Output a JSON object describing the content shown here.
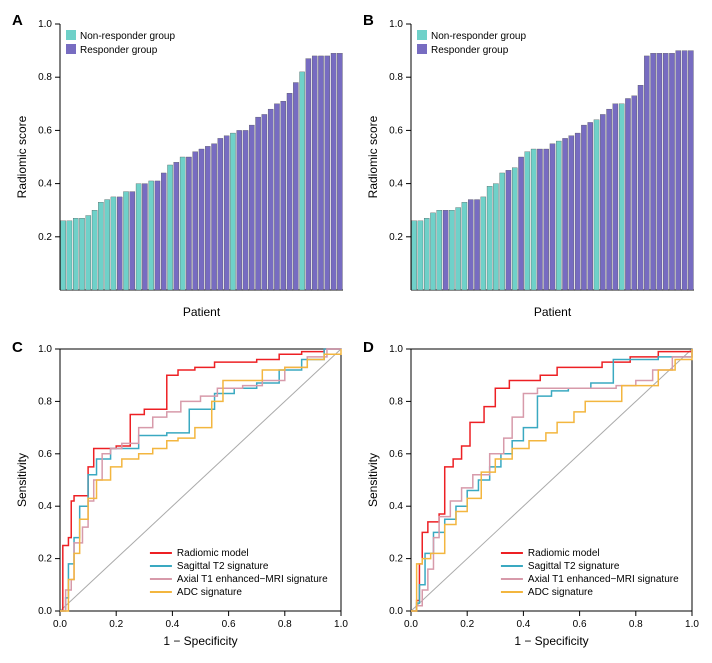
{
  "panels": {
    "A": {
      "label": "A",
      "type": "bar"
    },
    "B": {
      "label": "B",
      "type": "bar"
    },
    "C": {
      "label": "C",
      "type": "roc"
    },
    "D": {
      "label": "D",
      "type": "roc"
    }
  },
  "bar_common": {
    "ylabel": "Radiomic score",
    "xlabel": "Patient",
    "ylim": [
      0,
      1.0
    ],
    "yticks": [
      0.2,
      0.4,
      0.6,
      0.8,
      1.0
    ],
    "axis_fontsize": 12,
    "tick_fontsize": 10,
    "legend_items": [
      {
        "label": "Non-responder group",
        "color": "#6fd1c9"
      },
      {
        "label": "Responder group",
        "color": "#776cc1"
      }
    ],
    "colors": {
      "nonresponder": "#6fd1c9",
      "responder": "#776cc1"
    },
    "background_color": "#ffffff"
  },
  "barA_values": [
    {
      "v": 0.26,
      "g": "n"
    },
    {
      "v": 0.26,
      "g": "n"
    },
    {
      "v": 0.27,
      "g": "n"
    },
    {
      "v": 0.27,
      "g": "n"
    },
    {
      "v": 0.28,
      "g": "n"
    },
    {
      "v": 0.3,
      "g": "n"
    },
    {
      "v": 0.33,
      "g": "n"
    },
    {
      "v": 0.34,
      "g": "n"
    },
    {
      "v": 0.35,
      "g": "n"
    },
    {
      "v": 0.35,
      "g": "r"
    },
    {
      "v": 0.37,
      "g": "n"
    },
    {
      "v": 0.37,
      "g": "r"
    },
    {
      "v": 0.4,
      "g": "n"
    },
    {
      "v": 0.4,
      "g": "r"
    },
    {
      "v": 0.41,
      "g": "n"
    },
    {
      "v": 0.41,
      "g": "r"
    },
    {
      "v": 0.44,
      "g": "r"
    },
    {
      "v": 0.47,
      "g": "n"
    },
    {
      "v": 0.48,
      "g": "r"
    },
    {
      "v": 0.5,
      "g": "n"
    },
    {
      "v": 0.5,
      "g": "r"
    },
    {
      "v": 0.52,
      "g": "r"
    },
    {
      "v": 0.53,
      "g": "r"
    },
    {
      "v": 0.54,
      "g": "r"
    },
    {
      "v": 0.55,
      "g": "r"
    },
    {
      "v": 0.57,
      "g": "r"
    },
    {
      "v": 0.58,
      "g": "r"
    },
    {
      "v": 0.59,
      "g": "n"
    },
    {
      "v": 0.6,
      "g": "r"
    },
    {
      "v": 0.6,
      "g": "r"
    },
    {
      "v": 0.62,
      "g": "r"
    },
    {
      "v": 0.65,
      "g": "r"
    },
    {
      "v": 0.66,
      "g": "r"
    },
    {
      "v": 0.68,
      "g": "r"
    },
    {
      "v": 0.7,
      "g": "r"
    },
    {
      "v": 0.71,
      "g": "r"
    },
    {
      "v": 0.74,
      "g": "r"
    },
    {
      "v": 0.78,
      "g": "r"
    },
    {
      "v": 0.82,
      "g": "n"
    },
    {
      "v": 0.87,
      "g": "r"
    },
    {
      "v": 0.88,
      "g": "r"
    },
    {
      "v": 0.88,
      "g": "r"
    },
    {
      "v": 0.88,
      "g": "r"
    },
    {
      "v": 0.89,
      "g": "r"
    },
    {
      "v": 0.89,
      "g": "r"
    }
  ],
  "barB_values": [
    {
      "v": 0.26,
      "g": "n"
    },
    {
      "v": 0.26,
      "g": "n"
    },
    {
      "v": 0.27,
      "g": "n"
    },
    {
      "v": 0.29,
      "g": "n"
    },
    {
      "v": 0.3,
      "g": "n"
    },
    {
      "v": 0.3,
      "g": "r"
    },
    {
      "v": 0.3,
      "g": "n"
    },
    {
      "v": 0.31,
      "g": "n"
    },
    {
      "v": 0.33,
      "g": "n"
    },
    {
      "v": 0.34,
      "g": "r"
    },
    {
      "v": 0.34,
      "g": "r"
    },
    {
      "v": 0.35,
      "g": "n"
    },
    {
      "v": 0.39,
      "g": "n"
    },
    {
      "v": 0.4,
      "g": "n"
    },
    {
      "v": 0.44,
      "g": "n"
    },
    {
      "v": 0.45,
      "g": "r"
    },
    {
      "v": 0.46,
      "g": "n"
    },
    {
      "v": 0.5,
      "g": "r"
    },
    {
      "v": 0.52,
      "g": "n"
    },
    {
      "v": 0.53,
      "g": "n"
    },
    {
      "v": 0.53,
      "g": "r"
    },
    {
      "v": 0.53,
      "g": "r"
    },
    {
      "v": 0.55,
      "g": "r"
    },
    {
      "v": 0.56,
      "g": "n"
    },
    {
      "v": 0.57,
      "g": "r"
    },
    {
      "v": 0.58,
      "g": "r"
    },
    {
      "v": 0.59,
      "g": "r"
    },
    {
      "v": 0.62,
      "g": "r"
    },
    {
      "v": 0.63,
      "g": "r"
    },
    {
      "v": 0.64,
      "g": "n"
    },
    {
      "v": 0.66,
      "g": "r"
    },
    {
      "v": 0.68,
      "g": "r"
    },
    {
      "v": 0.7,
      "g": "r"
    },
    {
      "v": 0.7,
      "g": "n"
    },
    {
      "v": 0.72,
      "g": "r"
    },
    {
      "v": 0.73,
      "g": "r"
    },
    {
      "v": 0.77,
      "g": "r"
    },
    {
      "v": 0.88,
      "g": "r"
    },
    {
      "v": 0.89,
      "g": "r"
    },
    {
      "v": 0.89,
      "g": "r"
    },
    {
      "v": 0.89,
      "g": "r"
    },
    {
      "v": 0.89,
      "g": "r"
    },
    {
      "v": 0.9,
      "g": "r"
    },
    {
      "v": 0.9,
      "g": "r"
    },
    {
      "v": 0.9,
      "g": "r"
    }
  ],
  "roc_common": {
    "ylabel": "Sensitivity",
    "xlabel": "1 − Specificity",
    "xlim": [
      0,
      1.0
    ],
    "ylim": [
      0,
      1.0
    ],
    "ticks": [
      0.0,
      0.2,
      0.4,
      0.6,
      0.8,
      1.0
    ],
    "axis_fontsize": 12,
    "tick_fontsize": 10,
    "line_width": 1.5,
    "diag_color": "#aaaaaa",
    "legend_items": [
      {
        "label": "Radiomic model",
        "color": "#ed2024"
      },
      {
        "label": "Sagittal T2 signature",
        "color": "#3aa9c1"
      },
      {
        "label": "Axial T1 enhanced−MRI signature",
        "color": "#d79aaa"
      },
      {
        "label": "ADC signature",
        "color": "#f3b63f"
      }
    ],
    "background_color": "#ffffff"
  },
  "rocC": {
    "radiomic": [
      [
        0,
        0
      ],
      [
        0.01,
        0.25
      ],
      [
        0.03,
        0.28
      ],
      [
        0.04,
        0.42
      ],
      [
        0.05,
        0.44
      ],
      [
        0.08,
        0.44
      ],
      [
        0.1,
        0.55
      ],
      [
        0.12,
        0.62
      ],
      [
        0.15,
        0.62
      ],
      [
        0.2,
        0.63
      ],
      [
        0.25,
        0.75
      ],
      [
        0.3,
        0.77
      ],
      [
        0.35,
        0.77
      ],
      [
        0.38,
        0.9
      ],
      [
        0.42,
        0.92
      ],
      [
        0.48,
        0.93
      ],
      [
        0.55,
        0.95
      ],
      [
        0.62,
        0.95
      ],
      [
        0.7,
        0.96
      ],
      [
        0.78,
        0.98
      ],
      [
        0.86,
        0.99
      ],
      [
        0.94,
        1.0
      ],
      [
        1.0,
        1.0
      ]
    ],
    "sagittal": [
      [
        0,
        0
      ],
      [
        0.02,
        0.05
      ],
      [
        0.03,
        0.18
      ],
      [
        0.05,
        0.28
      ],
      [
        0.07,
        0.4
      ],
      [
        0.1,
        0.52
      ],
      [
        0.13,
        0.58
      ],
      [
        0.18,
        0.62
      ],
      [
        0.23,
        0.62
      ],
      [
        0.28,
        0.67
      ],
      [
        0.33,
        0.67
      ],
      [
        0.38,
        0.68
      ],
      [
        0.42,
        0.68
      ],
      [
        0.46,
        0.77
      ],
      [
        0.5,
        0.77
      ],
      [
        0.55,
        0.83
      ],
      [
        0.62,
        0.85
      ],
      [
        0.7,
        0.87
      ],
      [
        0.78,
        0.92
      ],
      [
        0.86,
        0.96
      ],
      [
        0.94,
        1.0
      ],
      [
        1.0,
        1.0
      ]
    ],
    "axial": [
      [
        0,
        0
      ],
      [
        0.02,
        0.08
      ],
      [
        0.04,
        0.12
      ],
      [
        0.05,
        0.26
      ],
      [
        0.08,
        0.32
      ],
      [
        0.1,
        0.42
      ],
      [
        0.12,
        0.5
      ],
      [
        0.15,
        0.6
      ],
      [
        0.18,
        0.62
      ],
      [
        0.22,
        0.64
      ],
      [
        0.28,
        0.7
      ],
      [
        0.33,
        0.74
      ],
      [
        0.38,
        0.76
      ],
      [
        0.43,
        0.8
      ],
      [
        0.5,
        0.82
      ],
      [
        0.56,
        0.85
      ],
      [
        0.65,
        0.86
      ],
      [
        0.72,
        0.88
      ],
      [
        0.8,
        0.93
      ],
      [
        0.88,
        0.97
      ],
      [
        0.95,
        1.0
      ],
      [
        1.0,
        1.0
      ]
    ],
    "adc": [
      [
        0,
        0
      ],
      [
        0.03,
        0.12
      ],
      [
        0.05,
        0.22
      ],
      [
        0.07,
        0.35
      ],
      [
        0.1,
        0.43
      ],
      [
        0.13,
        0.5
      ],
      [
        0.18,
        0.55
      ],
      [
        0.22,
        0.58
      ],
      [
        0.28,
        0.6
      ],
      [
        0.33,
        0.62
      ],
      [
        0.38,
        0.65
      ],
      [
        0.42,
        0.66
      ],
      [
        0.48,
        0.7
      ],
      [
        0.54,
        0.8
      ],
      [
        0.58,
        0.88
      ],
      [
        0.65,
        0.88
      ],
      [
        0.72,
        0.92
      ],
      [
        0.8,
        0.93
      ],
      [
        0.88,
        0.96
      ],
      [
        0.94,
        0.98
      ],
      [
        1.0,
        1.0
      ]
    ]
  },
  "rocD": {
    "radiomic": [
      [
        0,
        0
      ],
      [
        0.02,
        0.04
      ],
      [
        0.03,
        0.18
      ],
      [
        0.04,
        0.3
      ],
      [
        0.06,
        0.34
      ],
      [
        0.08,
        0.34
      ],
      [
        0.1,
        0.37
      ],
      [
        0.12,
        0.55
      ],
      [
        0.15,
        0.58
      ],
      [
        0.18,
        0.63
      ],
      [
        0.21,
        0.72
      ],
      [
        0.26,
        0.78
      ],
      [
        0.3,
        0.85
      ],
      [
        0.35,
        0.88
      ],
      [
        0.4,
        0.88
      ],
      [
        0.46,
        0.9
      ],
      [
        0.52,
        0.93
      ],
      [
        0.6,
        0.93
      ],
      [
        0.68,
        0.95
      ],
      [
        0.78,
        0.97
      ],
      [
        0.88,
        0.99
      ],
      [
        1.0,
        1.0
      ]
    ],
    "sagittal": [
      [
        0,
        0
      ],
      [
        0.02,
        0.03
      ],
      [
        0.03,
        0.1
      ],
      [
        0.05,
        0.22
      ],
      [
        0.08,
        0.3
      ],
      [
        0.12,
        0.35
      ],
      [
        0.16,
        0.4
      ],
      [
        0.2,
        0.46
      ],
      [
        0.24,
        0.5
      ],
      [
        0.28,
        0.55
      ],
      [
        0.32,
        0.6
      ],
      [
        0.36,
        0.65
      ],
      [
        0.4,
        0.7
      ],
      [
        0.45,
        0.82
      ],
      [
        0.5,
        0.84
      ],
      [
        0.56,
        0.85
      ],
      [
        0.64,
        0.87
      ],
      [
        0.72,
        0.96
      ],
      [
        0.8,
        0.96
      ],
      [
        0.88,
        0.97
      ],
      [
        1.0,
        1.0
      ]
    ],
    "axial": [
      [
        0,
        0
      ],
      [
        0.02,
        0.02
      ],
      [
        0.04,
        0.08
      ],
      [
        0.06,
        0.16
      ],
      [
        0.08,
        0.28
      ],
      [
        0.1,
        0.36
      ],
      [
        0.14,
        0.42
      ],
      [
        0.18,
        0.47
      ],
      [
        0.22,
        0.52
      ],
      [
        0.28,
        0.6
      ],
      [
        0.33,
        0.66
      ],
      [
        0.36,
        0.74
      ],
      [
        0.4,
        0.83
      ],
      [
        0.45,
        0.85
      ],
      [
        0.55,
        0.85
      ],
      [
        0.65,
        0.85
      ],
      [
        0.73,
        0.86
      ],
      [
        0.8,
        0.88
      ],
      [
        0.86,
        0.92
      ],
      [
        0.93,
        0.97
      ],
      [
        1.0,
        1.0
      ]
    ],
    "adc": [
      [
        0,
        0
      ],
      [
        0.02,
        0.18
      ],
      [
        0.04,
        0.2
      ],
      [
        0.07,
        0.22
      ],
      [
        0.12,
        0.33
      ],
      [
        0.16,
        0.38
      ],
      [
        0.2,
        0.43
      ],
      [
        0.25,
        0.53
      ],
      [
        0.3,
        0.58
      ],
      [
        0.36,
        0.62
      ],
      [
        0.42,
        0.65
      ],
      [
        0.48,
        0.68
      ],
      [
        0.52,
        0.72
      ],
      [
        0.58,
        0.76
      ],
      [
        0.62,
        0.8
      ],
      [
        0.68,
        0.8
      ],
      [
        0.75,
        0.86
      ],
      [
        0.82,
        0.86
      ],
      [
        0.88,
        0.92
      ],
      [
        0.94,
        0.96
      ],
      [
        1.0,
        1.0
      ]
    ]
  }
}
